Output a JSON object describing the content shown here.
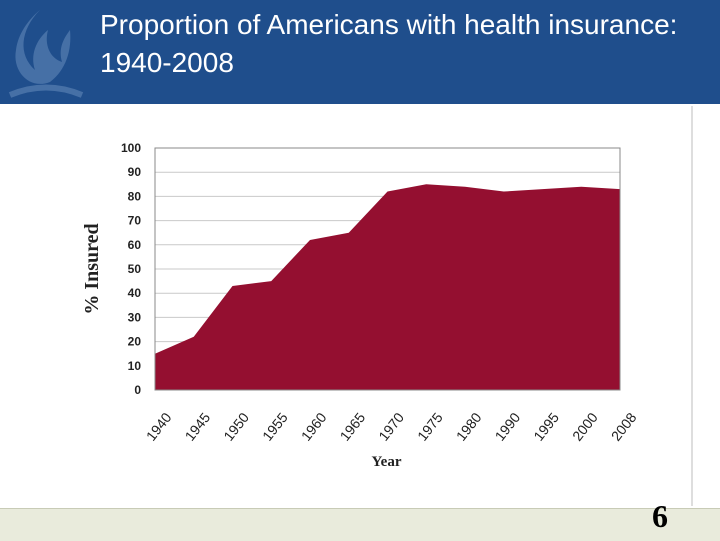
{
  "title": "Proportion of Americans with health insurance: 1940-2008",
  "page_number": "6",
  "colors": {
    "header": "#1f4e8c",
    "area_fill": "#940f30",
    "footer": "#e9ebdc"
  },
  "chart_data": {
    "type": "area",
    "x": [
      "1940",
      "1945",
      "1950",
      "1955",
      "1960",
      "1965",
      "1970",
      "1975",
      "1980",
      "1990",
      "1995",
      "2000",
      "2008"
    ],
    "values": [
      15,
      22,
      43,
      45,
      62,
      65,
      82,
      85,
      84,
      82,
      83,
      84,
      83
    ],
    "xlabel": "Year",
    "ylabel": "% Insured",
    "ylim": [
      0,
      100
    ],
    "yticks": [
      "0",
      "10",
      "20",
      "30",
      "40",
      "50",
      "60",
      "70",
      "80",
      "90",
      "100"
    ],
    "grid": true,
    "legend": "none"
  }
}
